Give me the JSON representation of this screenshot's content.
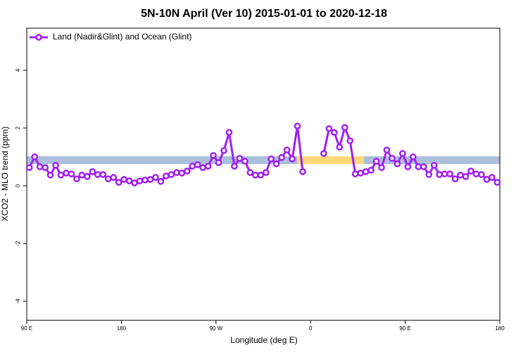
{
  "chart_data": {
    "type": "line",
    "title": "5N-10N April (Ver 10)   2015-01-01 to 2020-12-18",
    "xlabel": "Longitude (deg E)",
    "ylabel": "XCO2 - MLO trend (ppm)",
    "xlim": [
      90,
      540
    ],
    "ylim": [
      -4.66,
      5.46
    ],
    "xticks": [
      {
        "value": 90,
        "label": "90 E"
      },
      180,
      {
        "value": 270,
        "label": "90 W"
      },
      {
        "value": 360,
        "label": "0"
      },
      {
        "value": 450,
        "label": "90 E"
      },
      {
        "value": 540,
        "label": "180"
      }
    ],
    "yticks": [
      -4,
      -2,
      0,
      2,
      4
    ],
    "legend": "top-left",
    "x": [
      92.5,
      97.5,
      102.5,
      107.5,
      112.5,
      117.5,
      122.5,
      127.5,
      132.5,
      137.5,
      142.5,
      147.5,
      152.5,
      157.5,
      162.5,
      167.5,
      172.5,
      177.5,
      182.5,
      187.5,
      192.5,
      197.5,
      202.5,
      207.5,
      212.5,
      217.5,
      222.5,
      227.5,
      232.5,
      237.5,
      242.5,
      247.5,
      252.5,
      257.5,
      262.5,
      267.5,
      272.5,
      277.5,
      282.5,
      287.5,
      292.5,
      297.5,
      302.5,
      307.5,
      312.5,
      317.5,
      322.5,
      327.5,
      332.5,
      337.5,
      342.5,
      347.5,
      352.5,
      357.5,
      362.5,
      367.5,
      372.5,
      377.5,
      382.5,
      387.5,
      392.5,
      397.5,
      402.5,
      407.5,
      412.5,
      417.5,
      422.5,
      427.5,
      432.5,
      437.5,
      442.5,
      447.5,
      452.5,
      457.5,
      462.5,
      467.5,
      472.5,
      477.5,
      482.5,
      487.5,
      492.5,
      497.5,
      502.5,
      507.5,
      512.5,
      517.5,
      522.5,
      527.5,
      532.5,
      537.5
    ],
    "series": [
      {
        "name": "Land (Nadir&Glint) and Ocean (Glint)",
        "color": "#a020f0",
        "values": [
          0.63,
          1.0,
          0.66,
          0.63,
          0.37,
          0.71,
          0.37,
          0.44,
          0.41,
          0.24,
          0.37,
          0.32,
          0.49,
          0.39,
          0.39,
          0.24,
          0.29,
          0.12,
          0.22,
          0.17,
          0.1,
          0.17,
          0.2,
          0.22,
          0.29,
          0.15,
          0.34,
          0.39,
          0.46,
          0.44,
          0.51,
          0.68,
          0.73,
          0.63,
          0.68,
          1.05,
          0.8,
          1.22,
          1.85,
          0.68,
          0.95,
          0.85,
          0.46,
          0.37,
          0.37,
          0.46,
          0.93,
          0.76,
          0.98,
          1.24,
          0.93,
          2.07,
          0.49,
          null,
          null,
          null,
          1.12,
          1.98,
          1.85,
          1.34,
          2.02,
          1.56,
          0.41,
          0.44,
          0.49,
          0.54,
          0.85,
          0.63,
          1.24,
          0.95,
          0.76,
          1.12,
          0.66,
          1.0,
          0.66,
          0.66,
          0.39,
          0.71,
          0.39,
          0.41,
          0.41,
          0.24,
          0.37,
          0.32,
          0.51,
          0.41,
          0.39,
          0.22,
          0.29,
          0.12
        ]
      }
    ]
  }
}
